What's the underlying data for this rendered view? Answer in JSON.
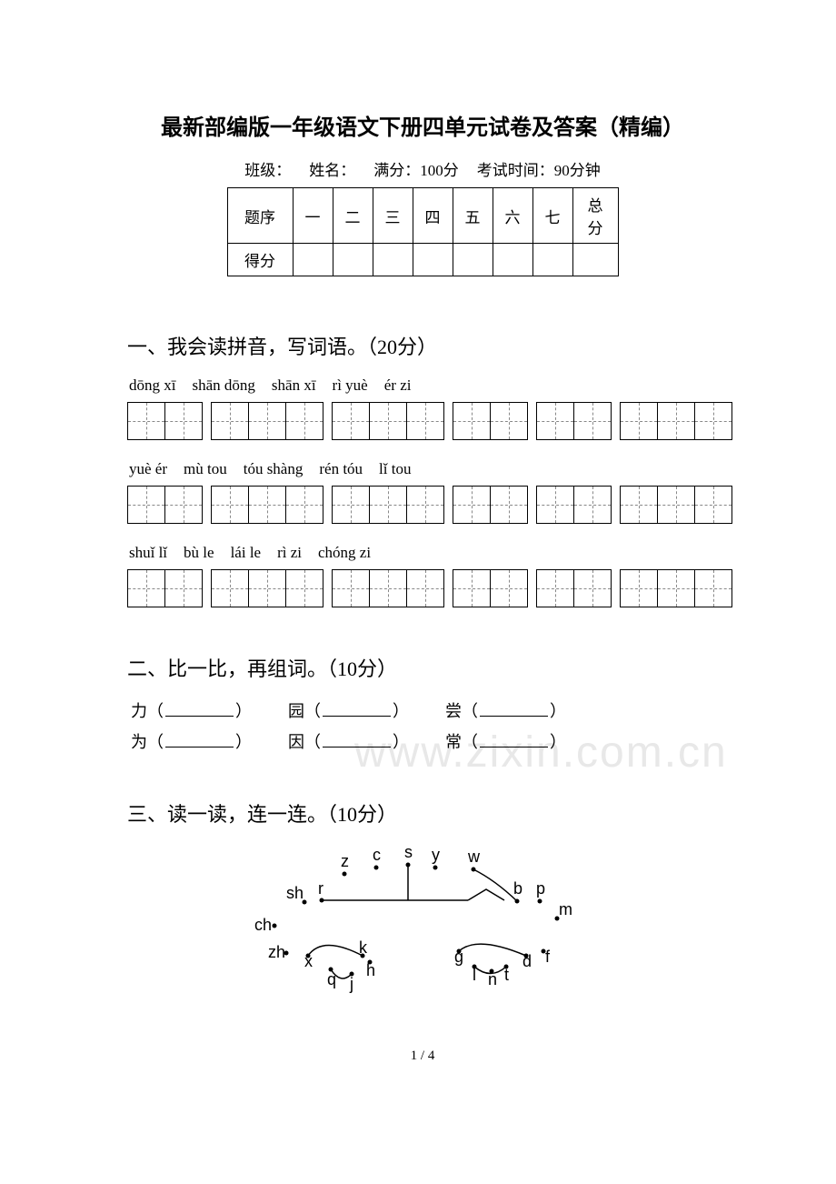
{
  "title": "最新部编版一年级语文下册四单元试卷及答案（精编）",
  "info": {
    "class_label": "班级：",
    "name_label": "姓名：",
    "full_score": "满分：100分",
    "exam_time": "考试时间：90分钟"
  },
  "score_table": {
    "row1_label": "题序",
    "row2_label": "得分",
    "cols": [
      "一",
      "二",
      "三",
      "四",
      "五",
      "六",
      "七",
      "总分"
    ]
  },
  "section1": {
    "title": "一、我会读拼音，写词语。（20分）",
    "pinyin_rows": [
      [
        "dōng xī",
        "shān dōng",
        "shān xī",
        "rì yuè",
        "ér zi"
      ],
      [
        "yuè ér",
        "mù tou",
        "tóu shàng",
        "rén tóu",
        "lǐ tou"
      ],
      [
        "shuǐ lǐ",
        "bù le",
        "lái le",
        "rì zi",
        "chóng zi"
      ]
    ],
    "grid_groups": [
      [
        2,
        3,
        3,
        2,
        2,
        3
      ],
      [
        2,
        3,
        3,
        2,
        2,
        3
      ],
      [
        2,
        3,
        3,
        2,
        2,
        3
      ]
    ]
  },
  "section2": {
    "title": "二、比一比，再组词。（10分）",
    "rows": [
      [
        {
          "char": "力"
        },
        {
          "char": "园"
        },
        {
          "char": "尝"
        }
      ],
      [
        {
          "char": "为"
        },
        {
          "char": "因"
        },
        {
          "char": "常"
        }
      ]
    ]
  },
  "section3": {
    "title": "三、读一读，连一连。（10分）",
    "letters": {
      "top": [
        "z",
        "c",
        "s",
        "y",
        "w"
      ],
      "mid_left": [
        "sh",
        "r"
      ],
      "mid_right": [
        "b",
        "p"
      ],
      "left": [
        "ch",
        "zh"
      ],
      "right": [
        "m"
      ],
      "bottom_left": [
        "x",
        "q",
        "j",
        "h",
        "k"
      ],
      "bottom_right": [
        "g",
        "l",
        "n",
        "t",
        "d",
        "f"
      ]
    }
  },
  "watermark": "www.zixin.com.cn",
  "page": "1 / 4"
}
